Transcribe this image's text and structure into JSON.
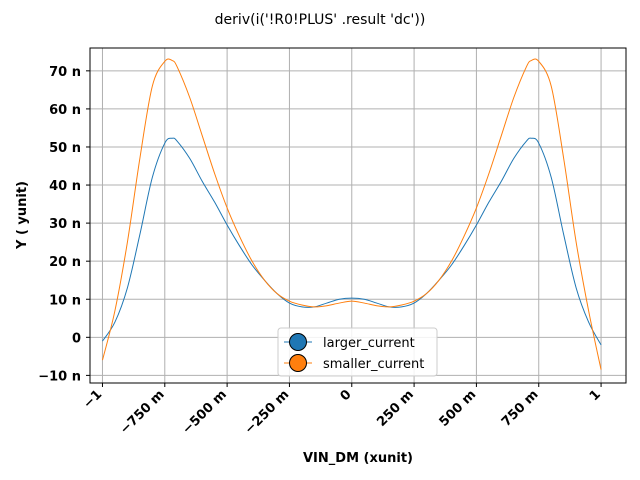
{
  "chart_data": {
    "type": "line",
    "title": "deriv(i('!R0!PLUS' .result 'dc'))",
    "xlabel": "VIN_DM (xunit)",
    "ylabel": "Y ( yunit)",
    "xlim": [
      -1.05,
      1.1
    ],
    "ylim": [
      -12,
      76
    ],
    "grid": true,
    "legend_position": "bottom-center",
    "x_ticks": [
      {
        "value": -1,
        "label": "−1"
      },
      {
        "value": -0.75,
        "label": "−750 m"
      },
      {
        "value": -0.5,
        "label": "−500 m"
      },
      {
        "value": -0.25,
        "label": "−250 m"
      },
      {
        "value": 0,
        "label": "0"
      },
      {
        "value": 0.25,
        "label": "250 m"
      },
      {
        "value": 0.5,
        "label": "500 m"
      },
      {
        "value": 0.75,
        "label": "750 m"
      },
      {
        "value": 1,
        "label": "1"
      }
    ],
    "y_ticks": [
      {
        "value": -10,
        "label": "−10 n"
      },
      {
        "value": 0,
        "label": "0"
      },
      {
        "value": 10,
        "label": "10 n"
      },
      {
        "value": 20,
        "label": "20 n"
      },
      {
        "value": 30,
        "label": "30 n"
      },
      {
        "value": 40,
        "label": "40 n"
      },
      {
        "value": 50,
        "label": "50 n"
      },
      {
        "value": 60,
        "label": "60 n"
      },
      {
        "value": 70,
        "label": "70 n"
      }
    ],
    "x": [
      -1.0,
      -0.95,
      -0.9,
      -0.85,
      -0.8,
      -0.75,
      -0.72,
      -0.7,
      -0.65,
      -0.6,
      -0.55,
      -0.5,
      -0.45,
      -0.4,
      -0.35,
      -0.3,
      -0.25,
      -0.2,
      -0.15,
      -0.1,
      -0.05,
      0.0,
      0.05,
      0.1,
      0.15,
      0.2,
      0.25,
      0.3,
      0.35,
      0.4,
      0.45,
      0.5,
      0.55,
      0.6,
      0.65,
      0.7,
      0.72,
      0.75,
      0.8,
      0.85,
      0.9,
      0.95,
      1.0
    ],
    "series": [
      {
        "name": "larger_current",
        "color": "#1f77b4",
        "values": [
          -1,
          4,
          13,
          27,
          42,
          51,
          52.3,
          51.5,
          47,
          41,
          35.5,
          29.5,
          24,
          19,
          15,
          11.5,
          9,
          8,
          8,
          9,
          10,
          10.3,
          10,
          9,
          8,
          8,
          9,
          11.5,
          15,
          19,
          24,
          29.5,
          35.5,
          41,
          47,
          51.5,
          52.3,
          51,
          42,
          27,
          13,
          4,
          -2
        ]
      },
      {
        "name": "smaller_current",
        "color": "#ff7f0e",
        "values": [
          -6,
          7,
          25,
          47,
          66,
          72.5,
          72.7,
          71,
          63,
          53,
          43,
          34,
          26.5,
          20,
          15,
          11.5,
          9.5,
          8.5,
          8,
          8.3,
          9,
          9.5,
          9,
          8.3,
          8,
          8.5,
          9.5,
          11.5,
          15,
          20,
          26.5,
          34,
          43,
          53,
          63,
          71,
          72.7,
          72.5,
          66,
          47,
          25,
          7,
          -8.5
        ]
      }
    ]
  }
}
